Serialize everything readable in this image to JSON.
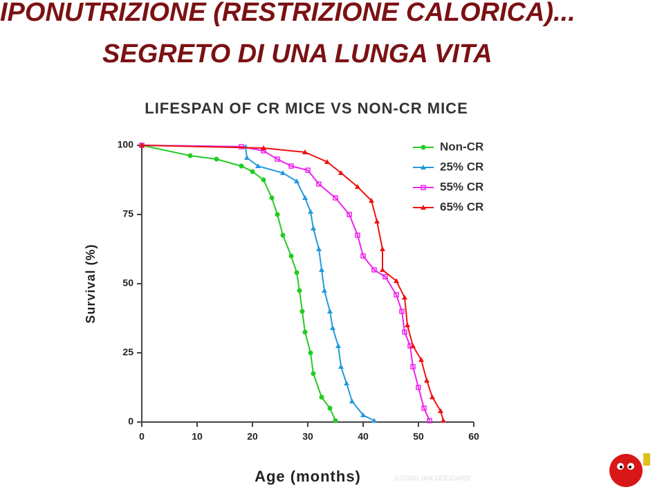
{
  "header": {
    "line1": "IPONUTRIZIONE (RESTRIZIONE CALORICA)...",
    "line2": "SEGRETO DI UNA LUNGA VITA"
  },
  "chart_data": {
    "type": "line",
    "title": "LIFESPAN OF CR MICE VS NON-CR MICE",
    "x_label": "Age (months)",
    "y_label": "Survival (%)",
    "watermark": "(C)2001 IAN GODDARD",
    "xlim": [
      0,
      60
    ],
    "xticks": [
      0,
      10,
      20,
      30,
      40,
      50,
      60
    ],
    "ylim": [
      0,
      100
    ],
    "yticks": [
      0,
      25,
      50,
      75,
      100
    ],
    "legend": "upper right",
    "series": [
      {
        "name": "Non-CR",
        "color": "#22cc22",
        "marker": "circle",
        "x": [
          0,
          8.75,
          13.5,
          18,
          20,
          22,
          23.5,
          24.5,
          25.5,
          27,
          28,
          28.5,
          29,
          29.5,
          30.5,
          31,
          32.5,
          34,
          35
        ],
        "values": [
          100,
          96.25,
          95,
          92.5,
          90.5,
          87.5,
          81,
          75,
          67.5,
          60,
          54,
          47.5,
          40,
          32.5,
          25,
          17.5,
          9,
          5,
          0.5
        ]
      },
      {
        "name": "25% CR",
        "color": "#2299dd",
        "marker": "triangle",
        "x": [
          0,
          18.75,
          19,
          21,
          25.5,
          28,
          29.5,
          30.5,
          31,
          32,
          32.5,
          33,
          34,
          34.5,
          35.5,
          36,
          37,
          38,
          40,
          42
        ],
        "values": [
          100,
          99.5,
          95.5,
          92.5,
          90,
          87,
          81,
          76,
          70,
          62.5,
          55,
          47.5,
          40,
          34,
          27.5,
          20,
          14,
          7.5,
          2.5,
          0.5
        ]
      },
      {
        "name": "55% CR",
        "color": "#ee22ee",
        "marker": "square",
        "x": [
          0,
          18,
          22,
          24.5,
          27,
          30,
          32,
          35,
          37.5,
          39,
          40,
          42,
          44,
          46,
          47,
          47.5,
          48.5,
          49,
          50,
          51,
          52
        ],
        "values": [
          100,
          99.5,
          98,
          95,
          92.5,
          91,
          86,
          81,
          75,
          67.5,
          60,
          55,
          52.5,
          46,
          40,
          32.5,
          27.5,
          20,
          12.5,
          5,
          0.5
        ]
      },
      {
        "name": "65% CR",
        "color": "#ee1111",
        "marker": "triangle",
        "x": [
          0,
          22,
          29.5,
          33.5,
          36,
          39,
          41.5,
          42.5,
          43.5,
          43.5,
          46,
          47.5,
          48,
          49,
          50.5,
          51.5,
          52.5,
          54,
          54.5
        ],
        "values": [
          100,
          99,
          97.5,
          94,
          90,
          85,
          80,
          72.5,
          62.5,
          55,
          51,
          45,
          35,
          27.5,
          22.5,
          15,
          9,
          4,
          0.5
        ]
      }
    ]
  }
}
